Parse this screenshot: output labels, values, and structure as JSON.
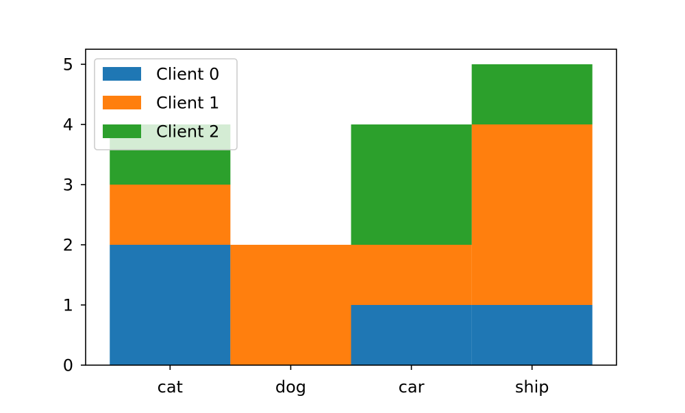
{
  "chart_data": {
    "type": "bar",
    "stacked": true,
    "categories": [
      "cat",
      "dog",
      "car",
      "ship"
    ],
    "series": [
      {
        "name": "Client 0",
        "values": [
          2,
          0,
          1,
          1
        ],
        "color": "#1f77b4"
      },
      {
        "name": "Client 1",
        "values": [
          1,
          2,
          1,
          3
        ],
        "color": "#ff7f0e"
      },
      {
        "name": "Client 2",
        "values": [
          1,
          0,
          2,
          1
        ],
        "color": "#2ca02c"
      }
    ],
    "yticks": [
      "0",
      "1",
      "2",
      "3",
      "4",
      "5"
    ],
    "ylim": [
      0,
      5.25
    ],
    "grid": false,
    "legend_position": "top-left"
  }
}
